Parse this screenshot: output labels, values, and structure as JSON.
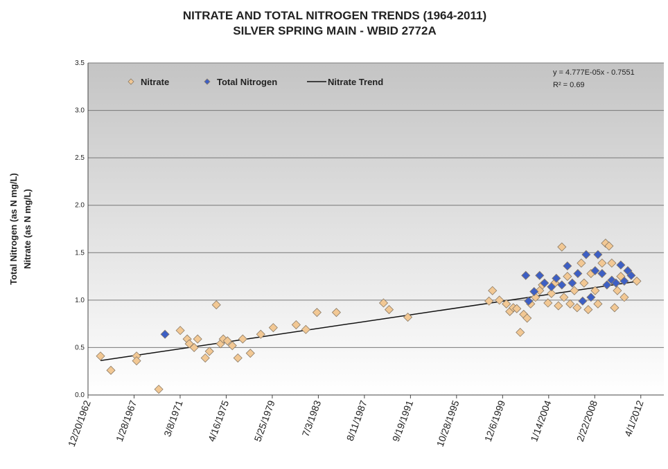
{
  "chart_data": {
    "type": "scatter",
    "title": "NITRATE AND TOTAL NITROGEN TRENDS (1964-2011)",
    "subtitle": "SILVER SPRING MAIN - WBID 2772A",
    "y_label": "Total Nitrogen (as N mg/L)",
    "y_label_2": "Nitrate (as N mg/L)",
    "annotations": [
      "y = 4.777E-05x - 0.7551",
      "R² = 0.69"
    ],
    "xlim": [
      23000,
      41750
    ],
    "xticks": [
      {
        "value": 23000,
        "label": "12/20/1962"
      },
      {
        "value": 24500,
        "label": "1/28/1967"
      },
      {
        "value": 26000,
        "label": "3/8/1971"
      },
      {
        "value": 27500,
        "label": "4/16/1975"
      },
      {
        "value": 29000,
        "label": "5/25/1979"
      },
      {
        "value": 30500,
        "label": "7/3/1983"
      },
      {
        "value": 32000,
        "label": "8/11/1987"
      },
      {
        "value": 33500,
        "label": "9/19/1991"
      },
      {
        "value": 35000,
        "label": "10/28/1995"
      },
      {
        "value": 36500,
        "label": "12/6/1999"
      },
      {
        "value": 38000,
        "label": "1/14/2004"
      },
      {
        "value": 39500,
        "label": "2/22/2008"
      },
      {
        "value": 41000,
        "label": "4/1/2012"
      }
    ],
    "ylim": [
      0,
      3.5
    ],
    "yticks": [
      {
        "value": 0,
        "label": "0.0"
      },
      {
        "value": 0.5,
        "label": "0.5"
      },
      {
        "value": 1,
        "label": "1.0"
      },
      {
        "value": 1.5,
        "label": "1.5"
      },
      {
        "value": 2,
        "label": "2.0"
      },
      {
        "value": 2.5,
        "label": "2.5"
      },
      {
        "value": 3,
        "label": "3.0"
      },
      {
        "value": 3.5,
        "label": "3.5"
      }
    ],
    "grid": true,
    "legend": "top-left",
    "series": [
      {
        "name": "Nitrate",
        "color": "#f2c894",
        "type": "scatter",
        "x": [
          23407,
          23745,
          24581,
          24581,
          25304,
          26004,
          26230,
          26298,
          26456,
          26569,
          26818,
          26953,
          27179,
          27315,
          27405,
          27541,
          27699,
          27879,
          28038,
          28286,
          28625,
          29032,
          29777,
          30093,
          30455,
          31087,
          32623,
          32804,
          33414,
          36057,
          36170,
          36396,
          36622,
          36735,
          36848,
          36961,
          37074,
          37187,
          37299,
          37412,
          37571,
          37706,
          37796,
          37977,
          38090,
          38203,
          38316,
          38429,
          38497,
          38610,
          38700,
          38836,
          38926,
          39062,
          39152,
          39287,
          39378,
          39513,
          39604,
          39739,
          39852,
          39965,
          40055,
          40146,
          40236,
          40349,
          40462,
          40869
        ],
        "values": [
          0.41,
          0.26,
          0.41,
          0.36,
          0.06,
          0.68,
          0.59,
          0.54,
          0.5,
          0.59,
          0.39,
          0.46,
          0.95,
          0.54,
          0.59,
          0.57,
          0.52,
          0.39,
          0.59,
          0.44,
          0.64,
          0.71,
          0.74,
          0.69,
          0.87,
          0.87,
          0.97,
          0.9,
          0.82,
          0.99,
          1.1,
          1.0,
          0.96,
          0.88,
          0.92,
          0.91,
          0.66,
          0.85,
          0.81,
          0.96,
          1.03,
          1.1,
          1.16,
          0.97,
          1.07,
          1.18,
          0.94,
          1.56,
          1.03,
          1.25,
          0.96,
          1.1,
          0.92,
          1.39,
          1.18,
          0.9,
          1.28,
          1.1,
          0.96,
          1.39,
          1.6,
          1.57,
          1.39,
          0.92,
          1.1,
          1.25,
          1.03,
          1.2
        ]
      },
      {
        "name": "Total Nitrogen",
        "color": "#3d5fc4",
        "type": "scatter",
        "x": [
          25507,
          37254,
          37345,
          37525,
          37706,
          37864,
          38090,
          38248,
          38429,
          38610,
          38768,
          38949,
          39107,
          39220,
          39378,
          39513,
          39604,
          39739,
          39897,
          40055,
          40191,
          40349,
          40462,
          40575,
          40688
        ],
        "values": [
          0.64,
          1.26,
          0.99,
          1.09,
          1.26,
          1.18,
          1.14,
          1.23,
          1.16,
          1.36,
          1.18,
          1.28,
          0.99,
          1.48,
          1.03,
          1.31,
          1.48,
          1.28,
          1.16,
          1.21,
          1.18,
          1.37,
          1.2,
          1.31,
          1.26
        ]
      },
      {
        "name": "Nitrate Trend",
        "color": "#111111",
        "type": "line",
        "x": [
          23407,
          40869
        ],
        "values": [
          0.363,
          1.197
        ]
      }
    ]
  }
}
